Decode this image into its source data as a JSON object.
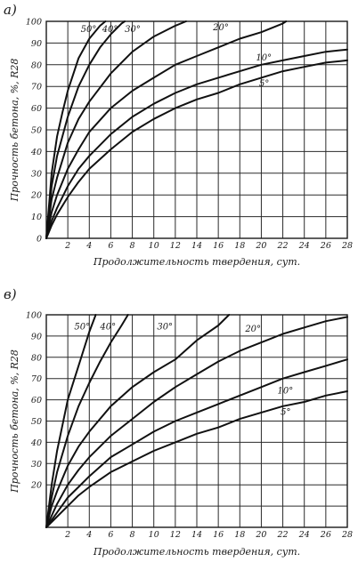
{
  "chart_data": [
    {
      "type": "line",
      "panel_label": "а)",
      "xlabel": "Продолжительность твердения, сут.",
      "ylabel": "Прочность бетона, %, R28",
      "xlim": [
        0,
        28
      ],
      "ylim": [
        0,
        100
      ],
      "x_ticks": [
        "2",
        "4",
        "6",
        "8",
        "10",
        "12",
        "14",
        "16",
        "18",
        "20",
        "22",
        "24",
        "26",
        "28"
      ],
      "y_ticks": [
        "0",
        "10",
        "20",
        "30",
        "40",
        "50",
        "60",
        "70",
        "80",
        "90",
        "100"
      ],
      "grid": true,
      "series": [
        {
          "name": "50°",
          "label_x": 3.2,
          "label_y": 95,
          "points": [
            [
              0,
              0
            ],
            [
              0.5,
              30
            ],
            [
              1,
              47
            ],
            [
              1.5,
              58
            ],
            [
              2,
              68
            ],
            [
              3,
              83
            ],
            [
              4,
              92
            ],
            [
              5,
              98
            ],
            [
              5.5,
              100
            ]
          ]
        },
        {
          "name": "40°",
          "label_x": 5.2,
          "label_y": 95,
          "points": [
            [
              0,
              0
            ],
            [
              0.5,
              24
            ],
            [
              1,
              38
            ],
            [
              2,
              56
            ],
            [
              3,
              70
            ],
            [
              4,
              80
            ],
            [
              5,
              88
            ],
            [
              6,
              94
            ],
            [
              7,
              99
            ],
            [
              7.3,
              100
            ]
          ]
        },
        {
          "name": "30°",
          "label_x": 7.3,
          "label_y": 95,
          "points": [
            [
              0,
              0
            ],
            [
              0.5,
              18
            ],
            [
              1,
              28
            ],
            [
              2,
              44
            ],
            [
              3,
              55
            ],
            [
              4,
              63
            ],
            [
              6,
              76
            ],
            [
              8,
              86
            ],
            [
              10,
              93
            ],
            [
              12,
              98
            ],
            [
              13,
              100
            ]
          ]
        },
        {
          "name": "20°",
          "label_x": 15.5,
          "label_y": 96,
          "points": [
            [
              0,
              0
            ],
            [
              0.5,
              12
            ],
            [
              1,
              20
            ],
            [
              2,
              32
            ],
            [
              3,
              41
            ],
            [
              4,
              49
            ],
            [
              6,
              60
            ],
            [
              8,
              68
            ],
            [
              10,
              74
            ],
            [
              12,
              80
            ],
            [
              14,
              84
            ],
            [
              16,
              88
            ],
            [
              18,
              92
            ],
            [
              20,
              95
            ],
            [
              22,
              99
            ],
            [
              22.3,
              100
            ]
          ]
        },
        {
          "name": "10°",
          "label_x": 19.5,
          "label_y": 82,
          "points": [
            [
              0,
              0
            ],
            [
              0.5,
              8
            ],
            [
              1,
              14
            ],
            [
              2,
              24
            ],
            [
              3,
              32
            ],
            [
              4,
              38
            ],
            [
              6,
              48
            ],
            [
              8,
              56
            ],
            [
              10,
              62
            ],
            [
              12,
              67
            ],
            [
              14,
              71
            ],
            [
              16,
              74
            ],
            [
              18,
              77
            ],
            [
              20,
              80
            ],
            [
              22,
              82
            ],
            [
              24,
              84
            ],
            [
              26,
              86
            ],
            [
              28,
              87
            ]
          ]
        },
        {
          "name": "5°",
          "label_x": 19.8,
          "label_y": 70,
          "points": [
            [
              0,
              0
            ],
            [
              0.5,
              6
            ],
            [
              1,
              11
            ],
            [
              2,
              19
            ],
            [
              3,
              26
            ],
            [
              4,
              32
            ],
            [
              6,
              41
            ],
            [
              8,
              49
            ],
            [
              10,
              55
            ],
            [
              12,
              60
            ],
            [
              14,
              64
            ],
            [
              16,
              67
            ],
            [
              18,
              71
            ],
            [
              20,
              74
            ],
            [
              22,
              77
            ],
            [
              24,
              79
            ],
            [
              26,
              81
            ],
            [
              28,
              82
            ]
          ]
        }
      ]
    },
    {
      "type": "line",
      "panel_label": "в)",
      "xlabel": "Продолжительность твердения, сут.",
      "ylabel": "Прочность бетона, %, R28",
      "xlim": [
        0,
        28
      ],
      "ylim": [
        0,
        100
      ],
      "x_ticks": [
        "2",
        "4",
        "6",
        "8",
        "10",
        "12",
        "14",
        "16",
        "18",
        "20",
        "22",
        "24",
        "26",
        "28"
      ],
      "y_ticks": [
        "20",
        "30",
        "40",
        "50",
        "60",
        "70",
        "80",
        "90",
        "100"
      ],
      "y_tick_values": [
        20,
        30,
        40,
        50,
        60,
        70,
        80,
        90,
        100
      ],
      "grid": true,
      "series": [
        {
          "name": "50°",
          "label_x": 2.6,
          "label_y": 93,
          "points": [
            [
              0,
              0
            ],
            [
              0.5,
              20
            ],
            [
              1,
              36
            ],
            [
              2,
              60
            ],
            [
              3,
              76
            ],
            [
              3.5,
              84
            ],
            [
              4,
              92
            ],
            [
              4.6,
              100
            ]
          ]
        },
        {
          "name": "40°",
          "label_x": 5.0,
          "label_y": 93,
          "points": [
            [
              0,
              0
            ],
            [
              0.5,
              14
            ],
            [
              1,
              26
            ],
            [
              2,
              43
            ],
            [
              3,
              57
            ],
            [
              4,
              68
            ],
            [
              5,
              78
            ],
            [
              6,
              87
            ],
            [
              7,
              95
            ],
            [
              7.6,
              100
            ]
          ]
        },
        {
          "name": "30°",
          "label_x": 10.3,
          "label_y": 93,
          "points": [
            [
              0,
              0
            ],
            [
              0.5,
              10
            ],
            [
              1,
              17
            ],
            [
              2,
              29
            ],
            [
              3,
              38
            ],
            [
              4,
              45
            ],
            [
              6,
              57
            ],
            [
              8,
              66
            ],
            [
              10,
              73
            ],
            [
              12,
              79
            ],
            [
              14,
              88
            ],
            [
              16,
              95
            ],
            [
              17,
              100
            ]
          ]
        },
        {
          "name": "20°",
          "label_x": 18.5,
          "label_y": 92,
          "points": [
            [
              0,
              0
            ],
            [
              1,
              11
            ],
            [
              2,
              20
            ],
            [
              3,
              27
            ],
            [
              4,
              33
            ],
            [
              6,
              43
            ],
            [
              8,
              51
            ],
            [
              10,
              59
            ],
            [
              12,
              66
            ],
            [
              14,
              72
            ],
            [
              16,
              78
            ],
            [
              18,
              83
            ],
            [
              20,
              87
            ],
            [
              22,
              91
            ],
            [
              24,
              94
            ],
            [
              26,
              97
            ],
            [
              28,
              99
            ]
          ]
        },
        {
          "name": "10°",
          "label_x": 21.5,
          "label_y": 63,
          "points": [
            [
              0,
              0
            ],
            [
              1,
              7
            ],
            [
              2,
              14
            ],
            [
              3,
              19
            ],
            [
              4,
              24
            ],
            [
              6,
              33
            ],
            [
              8,
              39
            ],
            [
              10,
              45
            ],
            [
              12,
              50
            ],
            [
              14,
              54
            ],
            [
              16,
              58
            ],
            [
              18,
              62
            ],
            [
              20,
              66
            ],
            [
              22,
              70
            ],
            [
              24,
              73
            ],
            [
              26,
              76
            ],
            [
              28,
              79
            ]
          ]
        },
        {
          "name": "5°",
          "label_x": 21.8,
          "label_y": 53,
          "points": [
            [
              0,
              0
            ],
            [
              1,
              5
            ],
            [
              2,
              10
            ],
            [
              3,
              15
            ],
            [
              4,
              19
            ],
            [
              6,
              26
            ],
            [
              8,
              31
            ],
            [
              10,
              36
            ],
            [
              12,
              40
            ],
            [
              14,
              44
            ],
            [
              16,
              47
            ],
            [
              18,
              51
            ],
            [
              20,
              54
            ],
            [
              22,
              57
            ],
            [
              24,
              59
            ],
            [
              26,
              62
            ],
            [
              28,
              64
            ]
          ]
        }
      ]
    }
  ]
}
